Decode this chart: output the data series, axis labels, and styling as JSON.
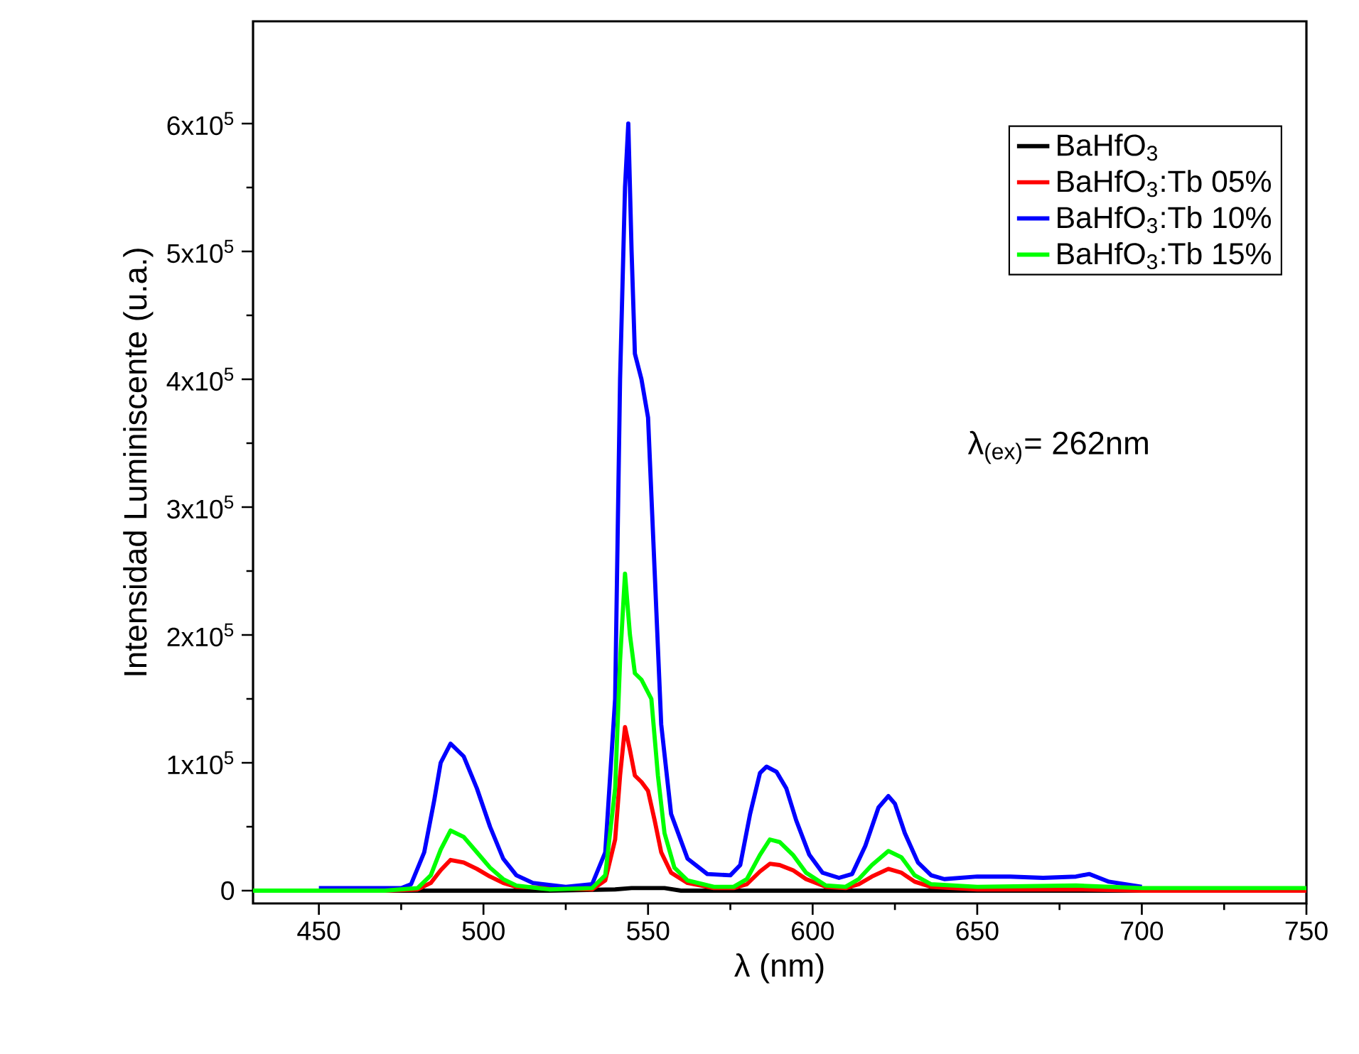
{
  "chart_data": {
    "type": "line",
    "xlabel": "λ (nm)",
    "ylabel": "Intensidad Luminiscente (u.a.)",
    "xlim": [
      430,
      750
    ],
    "ylim": [
      -10000,
      680000
    ],
    "xticks": [
      450,
      500,
      550,
      600,
      650,
      700,
      750
    ],
    "yticks": [
      0,
      {
        "value": 100000,
        "label": "1x10$^{5}$"
      },
      {
        "value": 200000,
        "label": "2x10$^{5}$"
      },
      {
        "value": 300000,
        "label": "3x10$^{5}$"
      },
      {
        "value": 400000,
        "label": "4x10$^{5}$"
      },
      {
        "value": 500000,
        "label": "5x10$^{5}$"
      },
      {
        "value": 600000,
        "label": "6x10$^{5}$"
      }
    ],
    "legend": "top right",
    "grid": false,
    "marker": "none",
    "line_style": "solid",
    "annotations": [
      "λ$_{(ex)}$= 262nm"
    ],
    "series": [
      {
        "name": "BaHfO$_{3}$",
        "color": "#000000",
        "x": [
          450,
          480,
          500,
          520,
          540,
          545,
          555,
          560,
          600,
          650,
          700
        ],
        "values": [
          0,
          0,
          0,
          0,
          1000,
          2000,
          2000,
          0,
          0,
          0,
          0
        ]
      },
      {
        "name": "BaHfO$_{3}$:Tb 05%",
        "color": "#ff0000",
        "x": [
          430,
          470,
          480,
          484,
          487,
          490,
          494,
          498,
          502,
          506,
          510,
          520,
          533,
          537,
          540,
          541.5,
          543,
          544.5,
          546,
          548,
          550,
          552,
          554,
          557,
          562,
          570,
          576,
          580,
          584,
          587,
          590,
          594,
          598,
          604,
          610,
          614,
          618,
          623,
          627,
          631,
          636,
          650,
          680,
          700,
          750
        ],
        "values": [
          0,
          0,
          1000,
          6000,
          16000,
          24000,
          22000,
          17000,
          11000,
          6000,
          3000,
          null,
          1000,
          8000,
          40000,
          90000,
          128000,
          110000,
          90000,
          85000,
          78000,
          55000,
          30000,
          14000,
          6000,
          2000,
          2000,
          5000,
          15000,
          21000,
          20000,
          16000,
          9000,
          3000,
          2000,
          5000,
          11000,
          17000,
          14000,
          7000,
          3000,
          1000,
          1000,
          0,
          0
        ]
      },
      {
        "name": "BaHfO$_{3}$:Tb 10%",
        "color": "#0000ff",
        "x": [
          450,
          475,
          478,
          482,
          485,
          487,
          490,
          494,
          498,
          502,
          506,
          510,
          515,
          525,
          533,
          537,
          540,
          541.5,
          543,
          544,
          545,
          546,
          548,
          550,
          552,
          554,
          557,
          562,
          568,
          575,
          578,
          581,
          584,
          586,
          589,
          592,
          595,
          599,
          603,
          608,
          612,
          616,
          620,
          623,
          625,
          628,
          632,
          636,
          640,
          650,
          660,
          670,
          680,
          684,
          690,
          700
        ],
        "values": [
          2000,
          2000,
          5000,
          30000,
          70000,
          100000,
          115000,
          105000,
          80000,
          50000,
          25000,
          12000,
          6000,
          3000,
          5000,
          30000,
          150000,
          400000,
          550000,
          600000,
          500000,
          420000,
          400000,
          370000,
          250000,
          130000,
          60000,
          25000,
          13000,
          12000,
          20000,
          60000,
          92000,
          97000,
          93000,
          80000,
          55000,
          28000,
          14000,
          10000,
          13000,
          35000,
          65000,
          74000,
          68000,
          45000,
          22000,
          12000,
          9000,
          11000,
          11000,
          10000,
          11000,
          13000,
          7000,
          3000
        ]
      },
      {
        "name": "BaHfO$_{3}$:Tb 15%",
        "color": "#00ff00",
        "x": [
          430,
          470,
          480,
          484,
          487,
          490,
          494,
          498,
          502,
          506,
          510,
          520,
          533,
          537,
          540,
          541.5,
          543,
          544.5,
          546,
          548,
          551,
          553,
          555,
          558,
          562,
          570,
          576,
          580,
          584,
          587,
          590,
          594,
          598,
          604,
          610,
          614,
          618,
          623,
          627,
          631,
          636,
          650,
          680,
          700,
          750
        ],
        "values": [
          0,
          0,
          2000,
          12000,
          32000,
          47000,
          42000,
          30000,
          18000,
          9000,
          4000,
          1000,
          2000,
          12000,
          80000,
          180000,
          248000,
          200000,
          170000,
          165000,
          150000,
          90000,
          45000,
          18000,
          8000,
          3000,
          3000,
          9000,
          28000,
          40000,
          38000,
          28000,
          14000,
          4000,
          3000,
          9000,
          20000,
          31000,
          26000,
          12000,
          5000,
          3000,
          4000,
          2000,
          2000
        ]
      }
    ]
  }
}
